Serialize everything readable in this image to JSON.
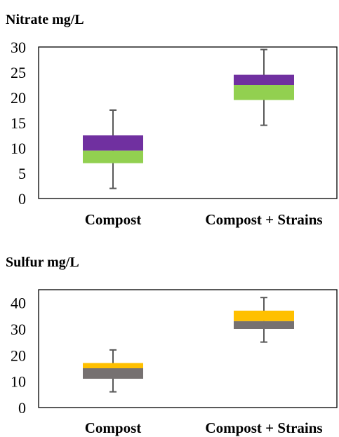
{
  "chart_data": [
    {
      "type": "box",
      "title": "Nitrate mg/L",
      "categories": [
        "Compost",
        "Compost + Strains"
      ],
      "ylim": [
        0,
        30
      ],
      "yticks": [
        "0",
        "5",
        "10",
        "15",
        "20",
        "25",
        "30"
      ],
      "grid": false,
      "boxes": [
        {
          "category": "Compost",
          "min": 2,
          "q1": 7,
          "median": 9.5,
          "q3": 12.5,
          "max": 17.5
        },
        {
          "category": "Compost + Strains",
          "min": 14.5,
          "q1": 19.5,
          "median": 22.5,
          "q3": 24.5,
          "max": 29.5
        }
      ],
      "colors": {
        "lower_box": "#92d050",
        "upper_box": "#7030a0",
        "whisker": "#595959",
        "frame": "#000000"
      }
    },
    {
      "type": "box",
      "title": "Sulfur mg/L",
      "categories": [
        "Compost",
        "Compost + Strains"
      ],
      "ylim": [
        0,
        45
      ],
      "yticks": [
        "0",
        "10",
        "20",
        "30",
        "40"
      ],
      "grid": false,
      "boxes": [
        {
          "category": "Compost",
          "min": 6,
          "q1": 11,
          "median": 15,
          "q3": 17,
          "max": 22
        },
        {
          "category": "Compost + Strains",
          "min": 25,
          "q1": 30,
          "median": 33,
          "q3": 37,
          "max": 42
        }
      ],
      "colors": {
        "lower_box": "#767171",
        "upper_box": "#ffc000",
        "whisker": "#595959",
        "frame": "#000000"
      }
    }
  ]
}
